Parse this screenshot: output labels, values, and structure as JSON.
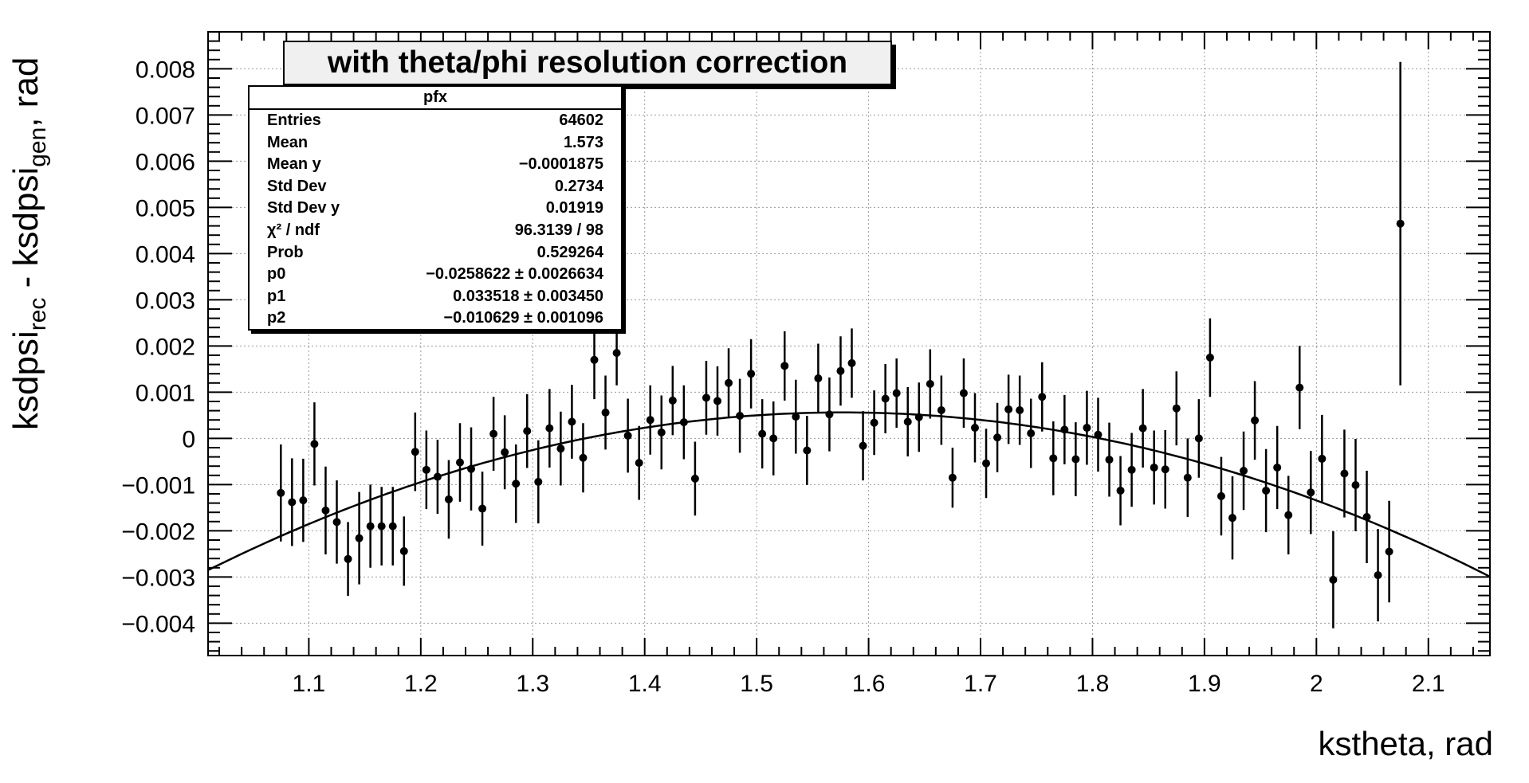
{
  "chart_data": {
    "type": "scatter",
    "title": "with theta/phi resolution correction",
    "xlabel": "kstheta, rad",
    "ylabel": {
      "prefix": "ksdpsi",
      "sub1": "rec",
      "mid": " - ksdpsi",
      "sub2": "gen",
      "suffix": ", rad"
    },
    "xlim": [
      1.01,
      2.155
    ],
    "ylim": [
      -0.0047,
      0.0088
    ],
    "x_ticks": [
      1.1,
      1.2,
      1.3,
      1.4,
      1.5,
      1.6,
      1.7,
      1.8,
      1.9,
      2,
      2.1
    ],
    "y_ticks": [
      -0.004,
      -0.003,
      -0.002,
      -0.001,
      0,
      0.001,
      0.002,
      0.003,
      0.004,
      0.005,
      0.006,
      0.007,
      0.008
    ],
    "y_tick_labels": [
      "−0.004",
      "−0.003",
      "−0.002",
      "−0.001",
      "0",
      "0.001",
      "0.002",
      "0.003",
      "0.004",
      "0.005",
      "0.006",
      "0.007",
      "0.008"
    ],
    "grid": true,
    "fit": {
      "function": "pol2",
      "p0": -0.0258622,
      "p1": 0.033518,
      "p2": -0.010629
    },
    "series": [
      {
        "x": [
          1.075,
          1.085,
          1.095,
          1.105,
          1.115,
          1.125,
          1.135,
          1.145,
          1.155,
          1.165,
          1.175,
          1.185,
          1.195,
          1.205,
          1.215,
          1.225,
          1.235,
          1.245,
          1.255,
          1.265,
          1.275,
          1.285,
          1.295,
          1.305,
          1.315,
          1.325,
          1.335,
          1.345,
          1.355,
          1.365,
          1.375,
          1.385,
          1.395,
          1.405,
          1.415,
          1.425,
          1.435,
          1.445,
          1.455,
          1.465,
          1.475,
          1.485,
          1.495,
          1.505,
          1.515,
          1.525,
          1.535,
          1.545,
          1.555,
          1.565,
          1.575,
          1.585,
          1.595,
          1.605,
          1.615,
          1.625,
          1.635,
          1.645,
          1.655,
          1.665,
          1.675,
          1.685,
          1.695,
          1.705,
          1.715,
          1.725,
          1.735,
          1.745,
          1.755,
          1.765,
          1.775,
          1.785,
          1.795,
          1.805,
          1.815,
          1.825,
          1.835,
          1.845,
          1.855,
          1.865,
          1.875,
          1.885,
          1.895,
          1.905,
          1.915,
          1.925,
          1.935,
          1.945,
          1.955,
          1.965,
          1.975,
          1.985,
          1.995,
          2.005,
          2.015,
          2.025,
          2.035,
          2.045,
          2.055,
          2.065,
          2.075
        ],
        "y": [
          -0.00118,
          -0.00138,
          -0.00134,
          -0.00012,
          -0.00156,
          -0.00181,
          -0.00261,
          -0.00216,
          -0.0019,
          -0.0019,
          -0.0019,
          -0.00244,
          -0.00029,
          -0.00068,
          -0.00083,
          -0.00132,
          -0.00052,
          -0.00066,
          -0.00152,
          0.0001,
          -0.0003,
          -0.00098,
          0.00016,
          -0.00094,
          0.00022,
          -0.00022,
          0.00036,
          -0.00042,
          0.0017,
          0.00056,
          0.00185,
          6e-05,
          -0.00053,
          0.0004,
          0.00013,
          0.00082,
          0.00035,
          -0.00087,
          0.00088,
          0.00081,
          0.0012,
          0.00049,
          0.0014,
          0.0001,
          0.0,
          0.00157,
          0.00047,
          -0.00026,
          0.0013,
          0.00052,
          0.00146,
          0.00163,
          -0.00016,
          0.00034,
          0.00086,
          0.00098,
          0.00036,
          0.00046,
          0.00118,
          0.00061,
          -0.00085,
          0.00098,
          0.00023,
          -0.00054,
          2e-05,
          0.00063,
          0.00061,
          0.00011,
          0.0009,
          -0.00043,
          0.00019,
          -0.00045,
          0.00023,
          8e-05,
          -0.00046,
          -0.00113,
          -0.00068,
          0.00022,
          -0.00063,
          -0.00067,
          0.00065,
          -0.00085,
          0.0,
          0.00175,
          -0.00125,
          -0.00172,
          -0.0007,
          0.00039,
          -0.00113,
          -0.00063,
          -0.00166,
          0.0011,
          -0.00117,
          -0.00044,
          -0.00306,
          -0.00076,
          -0.00101,
          -0.0017,
          -0.00296,
          -0.00245,
          0.00465
        ],
        "yerr": [
          0.00105,
          0.00095,
          0.0009,
          0.0009,
          0.00095,
          0.0009,
          0.0008,
          0.001,
          0.0009,
          0.00085,
          0.00085,
          0.00075,
          0.00085,
          0.00085,
          0.0008,
          0.00085,
          0.00085,
          0.0009,
          0.0008,
          0.0008,
          0.0008,
          0.00085,
          0.0008,
          0.0009,
          0.00085,
          0.0008,
          0.0008,
          0.00075,
          0.00085,
          0.0008,
          0.0007,
          0.0008,
          0.0008,
          0.00075,
          0.0008,
          0.00075,
          0.0008,
          0.0008,
          0.0008,
          0.00075,
          0.00075,
          0.0008,
          0.00075,
          0.00075,
          0.0008,
          0.00075,
          0.0008,
          0.00075,
          0.00075,
          0.0008,
          0.00075,
          0.00075,
          0.00075,
          0.0007,
          0.00075,
          0.00075,
          0.00075,
          0.00075,
          0.00075,
          0.00075,
          0.00065,
          0.00075,
          0.00075,
          0.00075,
          0.00075,
          0.00075,
          0.00075,
          0.00075,
          0.00075,
          0.0008,
          0.00075,
          0.0008,
          0.0008,
          0.0008,
          0.0008,
          0.00075,
          0.0008,
          0.00085,
          0.0008,
          0.00085,
          0.0008,
          0.00085,
          0.00085,
          0.00085,
          0.00085,
          0.0009,
          0.00085,
          0.00085,
          0.0009,
          0.0009,
          0.00085,
          0.0009,
          0.0009,
          0.00095,
          0.00105,
          0.00095,
          0.001,
          0.001,
          0.001,
          0.0011,
          0.0035
        ]
      }
    ]
  },
  "stats": {
    "name": "pfx",
    "rows": [
      {
        "label": "Entries",
        "value": "64602"
      },
      {
        "label": "Mean",
        "value": "1.573"
      },
      {
        "label": "Mean y",
        "value": "−0.0001875"
      },
      {
        "label": "Std Dev",
        "value": "0.2734"
      },
      {
        "label": "Std Dev y",
        "value": "0.01919"
      },
      {
        "label": "χ² / ndf",
        "value": "96.3139 / 98"
      },
      {
        "label": "Prob",
        "value": "0.529264"
      },
      {
        "label": "p0",
        "value": "−0.0258622 ± 0.0026634"
      },
      {
        "label": "p1",
        "value": "0.033518 ± 0.003450"
      },
      {
        "label": "p2",
        "value": "−0.010629 ± 0.001096"
      }
    ]
  }
}
